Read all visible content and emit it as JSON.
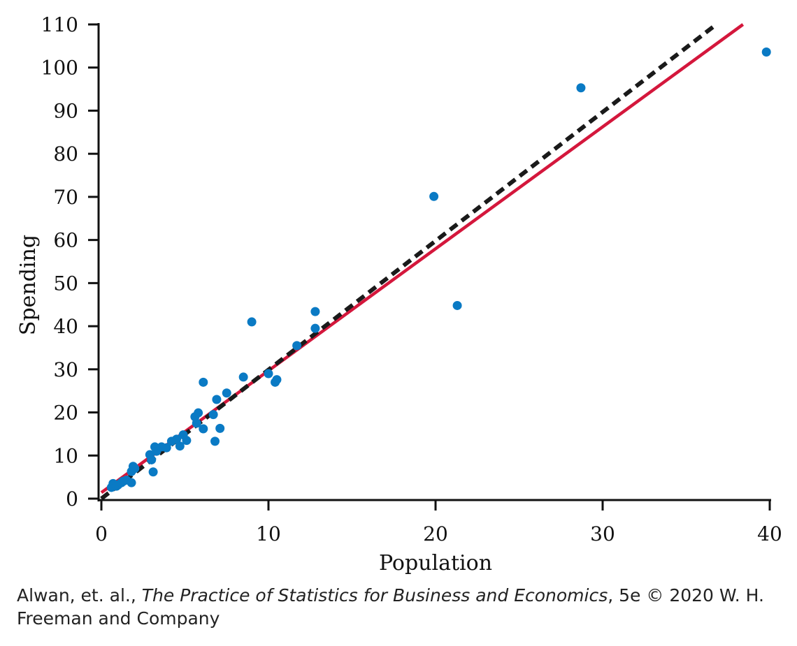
{
  "chart_data": {
    "type": "scatter",
    "xlabel": "Population",
    "ylabel": "Spending",
    "xlim": [
      0,
      40
    ],
    "ylim": [
      0,
      110
    ],
    "x_ticks": [
      0,
      10,
      20,
      30,
      40
    ],
    "y_ticks": [
      0,
      10,
      20,
      30,
      40,
      50,
      60,
      70,
      80,
      90,
      100,
      110
    ],
    "grid": false,
    "legend": "none",
    "colors": {
      "points": "#0a7ac4",
      "fit_line": "#d4173c",
      "reference_line": "#1a1a1a"
    },
    "series": [
      {
        "type": "scatter",
        "points": [
          [
            0.6,
            2.6
          ],
          [
            0.7,
            3.5
          ],
          [
            0.9,
            2.9
          ],
          [
            1.0,
            3.2
          ],
          [
            1.2,
            3.7
          ],
          [
            1.3,
            4.0
          ],
          [
            1.5,
            4.3
          ],
          [
            1.8,
            3.7
          ],
          [
            1.8,
            6.3
          ],
          [
            1.9,
            7.5
          ],
          [
            2.0,
            7.0
          ],
          [
            2.9,
            10.2
          ],
          [
            3.0,
            9.0
          ],
          [
            3.1,
            6.2
          ],
          [
            3.2,
            12.0
          ],
          [
            3.3,
            11.0
          ],
          [
            3.6,
            12.0
          ],
          [
            3.9,
            11.8
          ],
          [
            4.2,
            13.3
          ],
          [
            4.5,
            13.8
          ],
          [
            4.7,
            12.2
          ],
          [
            4.9,
            14.8
          ],
          [
            5.1,
            13.5
          ],
          [
            5.6,
            19.0
          ],
          [
            5.7,
            17.5
          ],
          [
            5.8,
            19.9
          ],
          [
            6.1,
            27.0
          ],
          [
            6.1,
            16.2
          ],
          [
            6.7,
            19.5
          ],
          [
            6.8,
            13.3
          ],
          [
            6.9,
            23.0
          ],
          [
            7.1,
            16.3
          ],
          [
            7.5,
            24.5
          ],
          [
            8.5,
            28.2
          ],
          [
            9.0,
            41.0
          ],
          [
            10.0,
            29.0
          ],
          [
            10.4,
            27.0
          ],
          [
            10.5,
            27.6
          ],
          [
            11.7,
            35.5
          ],
          [
            12.8,
            43.4
          ],
          [
            12.8,
            39.5
          ],
          [
            19.9,
            70.1
          ],
          [
            21.3,
            44.8
          ],
          [
            28.7,
            95.3
          ],
          [
            39.8,
            103.6
          ]
        ]
      },
      {
        "type": "line",
        "style": "solid",
        "points": [
          [
            0,
            1.4
          ],
          [
            38.4,
            110
          ]
        ]
      },
      {
        "type": "line",
        "style": "dashed",
        "points": [
          [
            0,
            0
          ],
          [
            36.8,
            110
          ]
        ]
      }
    ]
  },
  "credit": {
    "prefix": "Alwan, et. al., ",
    "book": "The Practice of Statistics for Business and Economics",
    "suffix": ", 5e © 2020 W. H. Freeman and Company"
  }
}
